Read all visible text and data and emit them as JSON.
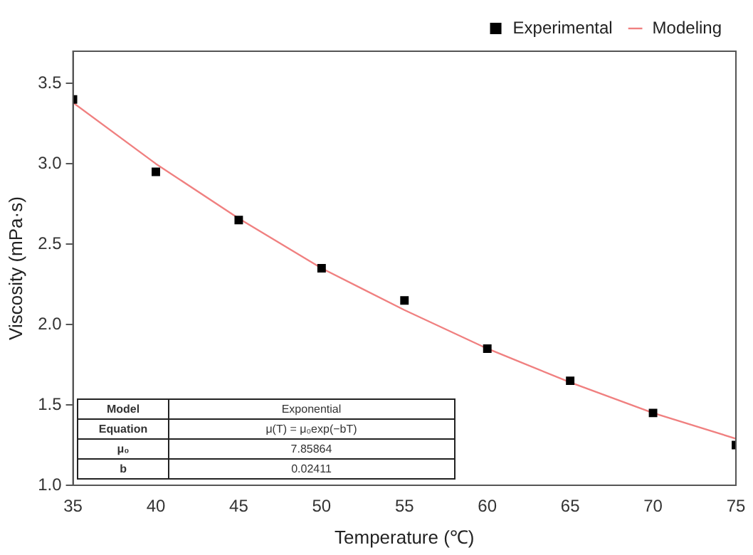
{
  "chart_data": {
    "type": "scatter",
    "xlabel": "Temperature (℃)",
    "ylabel": "Viscosity (mPa·s)",
    "xlim": [
      35,
      75
    ],
    "xticks": [
      35,
      40,
      45,
      50,
      55,
      60,
      65,
      70,
      75
    ],
    "ylim": [
      1,
      3.7
    ],
    "yticks": [
      {
        "value": 1,
        "label": "1.0"
      },
      {
        "value": 1.5,
        "label": "1.5"
      },
      {
        "value": 2,
        "label": "2.0"
      },
      {
        "value": 2.5,
        "label": "2.5"
      },
      {
        "value": 3,
        "label": "3.0"
      },
      {
        "value": 3.5,
        "label": "3.5"
      }
    ],
    "legend": "top right",
    "grid": false,
    "series": [
      {
        "name": "Experimental",
        "type": "scatter",
        "color": "#000000",
        "marker": "square",
        "x": [
          35,
          40,
          45,
          50,
          55,
          60,
          65,
          70,
          75
        ],
        "values": [
          3.4,
          2.95,
          2.65,
          2.35,
          2.15,
          1.85,
          1.65,
          1.45,
          1.25
        ]
      },
      {
        "name": "Modeling",
        "type": "line",
        "color": "#f08080",
        "marker": "none",
        "line_style": "solid",
        "x": [
          35,
          40,
          45,
          50,
          55,
          60,
          65,
          70,
          75
        ],
        "values": [
          3.38,
          3.0,
          2.66,
          2.35,
          2.09,
          1.85,
          1.64,
          1.45,
          1.29
        ]
      }
    ],
    "annotations": [
      "Model",
      "Exponential",
      "Equation",
      "μ(T) = μ₀exp(−bT)",
      "μ₀",
      "7.85864",
      "b",
      "0.02411"
    ]
  }
}
